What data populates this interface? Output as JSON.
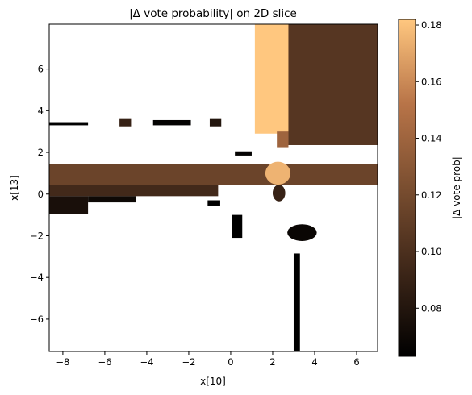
{
  "chart_data": {
    "type": "heatmap",
    "title": "|Δ vote probability| on 2D slice",
    "xlabel": "x[10]",
    "ylabel": "x[13]",
    "xlim": [
      -8.65,
      7.0
    ],
    "ylim": [
      -7.55,
      8.15
    ],
    "x_ticks": [
      -8,
      -6,
      -4,
      -2,
      0,
      2,
      4,
      6
    ],
    "y_ticks": [
      -6,
      -4,
      -2,
      0,
      2,
      4,
      6
    ],
    "x_tick_labels": [
      "−8",
      "−6",
      "−4",
      "−2",
      "0",
      "2",
      "4",
      "6"
    ],
    "y_tick_labels": [
      "−6",
      "−4",
      "−2",
      "0",
      "2",
      "4",
      "6"
    ],
    "background": "white (no difference)",
    "colormap": "copper",
    "colorbar": {
      "label": "|Δ vote prob|",
      "range": [
        0.063,
        0.182
      ],
      "ticks": [
        0.08,
        0.1,
        0.12,
        0.14,
        0.16,
        0.18
      ],
      "tick_labels": [
        "0.08",
        "0.10",
        "0.12",
        "0.14",
        "0.16",
        "0.18"
      ]
    },
    "regions": [
      {
        "kind": "rect",
        "x": [
          1.15,
          2.95
        ],
        "y": [
          2.9,
          8.15
        ],
        "value": 0.182
      },
      {
        "kind": "rect",
        "x": [
          2.75,
          7.0
        ],
        "y": [
          2.35,
          8.15
        ],
        "value": 0.105
      },
      {
        "kind": "rect",
        "x": [
          2.2,
          2.75
        ],
        "y": [
          2.25,
          3.0
        ],
        "value": 0.14
      },
      {
        "kind": "rect",
        "x": [
          -8.65,
          7.0
        ],
        "y": [
          0.45,
          1.45
        ],
        "value": 0.115
      },
      {
        "kind": "rect",
        "x": [
          -8.65,
          -0.6
        ],
        "y": [
          -0.1,
          0.45
        ],
        "value": 0.095
      },
      {
        "kind": "rect",
        "x": [
          -8.65,
          -6.8
        ],
        "y": [
          -0.95,
          -0.1
        ],
        "value": 0.075
      },
      {
        "kind": "rect",
        "x": [
          -6.8,
          -4.5
        ],
        "y": [
          -0.4,
          -0.1
        ],
        "value": 0.07
      },
      {
        "kind": "ellipse",
        "cx": 2.25,
        "cy": 1.0,
        "rx": 0.6,
        "ry": 0.55,
        "value": 0.175
      },
      {
        "kind": "ellipse",
        "cx": 2.3,
        "cy": 0.05,
        "rx": 0.3,
        "ry": 0.4,
        "value": 0.09
      },
      {
        "kind": "rect",
        "x": [
          -8.65,
          -6.8
        ],
        "y": [
          3.3,
          3.45
        ],
        "value": 0.063
      },
      {
        "kind": "rect",
        "x": [
          -5.3,
          -4.75
        ],
        "y": [
          3.25,
          3.6
        ],
        "value": 0.09
      },
      {
        "kind": "rect",
        "x": [
          -3.7,
          -1.9
        ],
        "y": [
          3.3,
          3.55
        ],
        "value": 0.065
      },
      {
        "kind": "rect",
        "x": [
          -1.0,
          -0.45
        ],
        "y": [
          3.25,
          3.6
        ],
        "value": 0.08
      },
      {
        "kind": "rect",
        "x": [
          0.2,
          1.0
        ],
        "y": [
          1.85,
          2.05
        ],
        "value": 0.065
      },
      {
        "kind": "rect",
        "x": [
          -1.1,
          -0.5
        ],
        "y": [
          -0.55,
          -0.3
        ],
        "value": 0.063
      },
      {
        "kind": "rect",
        "x": [
          0.05,
          0.55
        ],
        "y": [
          -2.1,
          -1.0
        ],
        "value": 0.063
      },
      {
        "kind": "ellipse",
        "cx": 3.4,
        "cy": -1.85,
        "rx": 0.7,
        "ry": 0.4,
        "value": 0.068
      },
      {
        "kind": "rect",
        "x": [
          3.0,
          3.3
        ],
        "y": [
          -7.55,
          -2.85
        ],
        "value": 0.063
      }
    ]
  }
}
